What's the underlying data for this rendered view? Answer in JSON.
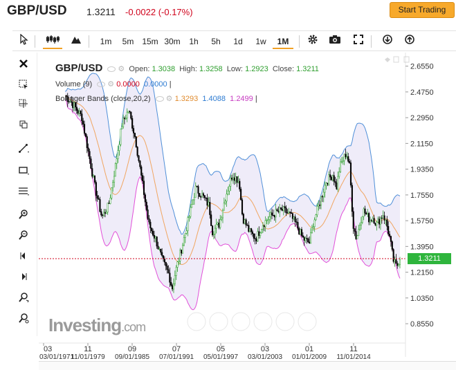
{
  "header": {
    "pair": "GBP/USD",
    "price": "1.3211",
    "change": "-0.0022 (-0.17%)",
    "start_button": "Start Trading"
  },
  "toolbar": {
    "intervals": [
      "1m",
      "5m",
      "15m",
      "30m",
      "1h",
      "5h",
      "1d",
      "1w",
      "1M"
    ],
    "active_interval": "1M"
  },
  "legend": {
    "symbol": "GBP/USD",
    "open_label": "Open:",
    "open": "1.3038",
    "high_label": "High:",
    "high": "1.3258",
    "low_label": "Low:",
    "low": "1.2923",
    "close_label": "Close:",
    "close": "1.3211",
    "volume_label": "Volume (9)",
    "volume_val1": "0.0000",
    "volume_val2": "0.0000",
    "bb_label": "Bollinger Bands (close,20,2)",
    "bb_mid": "1.3293",
    "bb_upper": "1.4088",
    "bb_lower": "1.2499"
  },
  "colors": {
    "up": "#2e9e2e",
    "down": "#000000",
    "bb_upper": "#4f8fd8",
    "bb_lower": "#e14fd8",
    "bb_mid": "#f0a560",
    "fill": "#e9e5f7",
    "last_price": "#2fb53d",
    "accent": "#f7a92b"
  },
  "logo": {
    "text": "Investing",
    "suffix": ".com"
  },
  "chart_data": {
    "type": "line",
    "title": "GBP/USD",
    "price_axis_labels": [
      "2.6550",
      "2.4750",
      "2.2950",
      "2.1150",
      "1.9350",
      "1.7550",
      "1.5750",
      "1.3950",
      "1.2150",
      "1.0350",
      "0.8550"
    ],
    "last_price_label": "1.3211",
    "x_ticks": [
      {
        "top": "03",
        "bottom": "03/01/1971"
      },
      {
        "top": "11",
        "bottom": "11/01/1979"
      },
      {
        "top": "09",
        "bottom": "09/01/1985"
      },
      {
        "top": "07",
        "bottom": "07/01/1991"
      },
      {
        "top": "05",
        "bottom": "05/01/1997"
      },
      {
        "top": "03",
        "bottom": "03/01/2003"
      },
      {
        "top": "01",
        "bottom": "01/01/2009"
      },
      {
        "top": "11",
        "bottom": "11/01/2014"
      }
    ],
    "ylim": [
      0.72,
      2.75
    ]
  }
}
